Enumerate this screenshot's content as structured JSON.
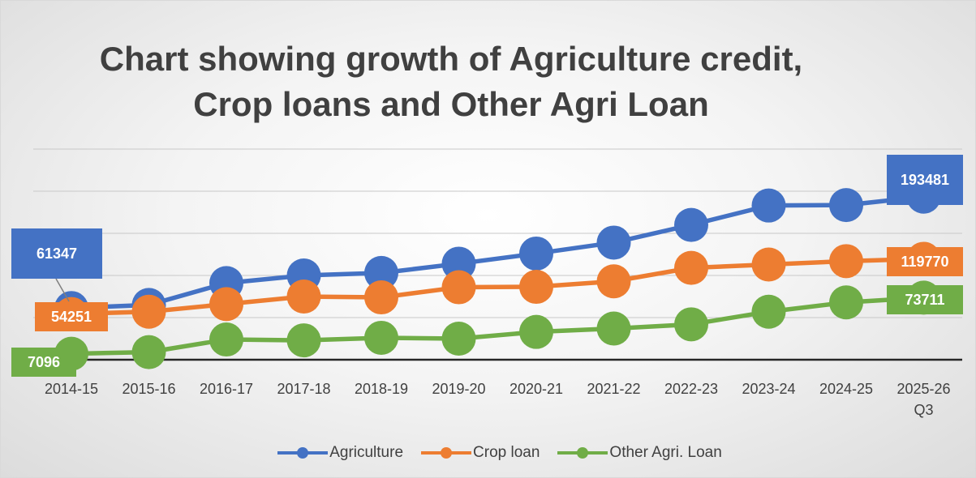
{
  "chart_data": {
    "type": "line",
    "title": "Chart showing growth of Agriculture credit,\nCrop loans and Other Agri Loan",
    "categories": [
      "2014-15",
      "2015-16",
      "2016-17",
      "2017-18",
      "2018-19",
      "2019-20",
      "2020-21",
      "2021-22",
      "2022-23",
      "2023-24",
      "2024-25",
      "2025-26\nQ3"
    ],
    "series": [
      {
        "name": "Agriculture",
        "color": "#4472C4",
        "values": [
          61347,
          65000,
          91000,
          100000,
          103000,
          114000,
          126000,
          139000,
          160000,
          183000,
          183500,
          193481
        ]
      },
      {
        "name": "Crop loan",
        "color": "#ED7D31",
        "values": [
          54251,
          57000,
          66000,
          75000,
          74000,
          86000,
          86500,
          93000,
          109000,
          113000,
          117000,
          119770
        ]
      },
      {
        "name": "Other Agri. Loan",
        "color": "#70AD47",
        "values": [
          7096,
          9000,
          24000,
          23000,
          26000,
          25000,
          33000,
          37000,
          42000,
          57000,
          68000,
          73711
        ]
      }
    ],
    "data_labels": [
      {
        "series": 0,
        "index": 0,
        "text": "61347"
      },
      {
        "series": 1,
        "index": 0,
        "text": "54251"
      },
      {
        "series": 2,
        "index": 0,
        "text": "7096"
      },
      {
        "series": 0,
        "index": 11,
        "text": "193481"
      },
      {
        "series": 1,
        "index": 11,
        "text": "119770"
      },
      {
        "series": 2,
        "index": 11,
        "text": "73711"
      }
    ],
    "ylim": [
      0,
      250000
    ],
    "grid": true,
    "legend_position": "bottom"
  }
}
